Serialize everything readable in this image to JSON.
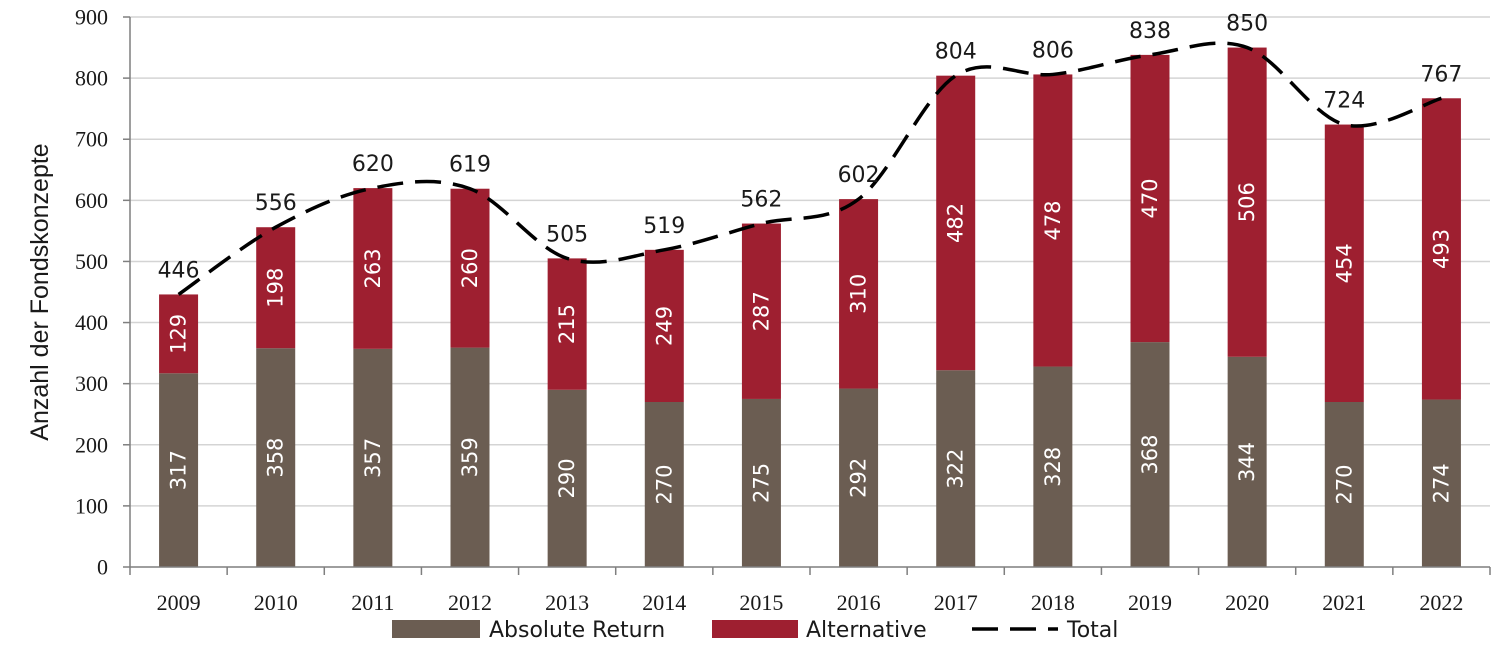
{
  "chart_data": {
    "type": "bar",
    "stacked": true,
    "categories": [
      "2009",
      "2010",
      "2011",
      "2012",
      "2013",
      "2014",
      "2015",
      "2016",
      "2017",
      "2018",
      "2019",
      "2020",
      "2021",
      "2022"
    ],
    "series": [
      {
        "name": "Absolute Return",
        "color": "#6b5d52",
        "values": [
          317,
          358,
          357,
          359,
          290,
          270,
          275,
          292,
          322,
          328,
          368,
          344,
          270,
          274
        ]
      },
      {
        "name": "Alternative",
        "color": "#9e1f30",
        "values": [
          129,
          198,
          263,
          260,
          215,
          249,
          287,
          310,
          482,
          478,
          470,
          506,
          454,
          493
        ]
      }
    ],
    "totals": {
      "name": "Total",
      "style": "dashed-line",
      "color": "#000000",
      "values": [
        446,
        556,
        620,
        619,
        505,
        519,
        562,
        602,
        804,
        806,
        838,
        850,
        724,
        767
      ]
    },
    "ylabel": "Anzahl der Fondskonzepte",
    "xlabel": "",
    "ylim": [
      0,
      900
    ],
    "yticks": [
      0,
      100,
      200,
      300,
      400,
      500,
      600,
      700,
      800,
      900
    ],
    "grid": true,
    "legend": "bottom-center"
  }
}
